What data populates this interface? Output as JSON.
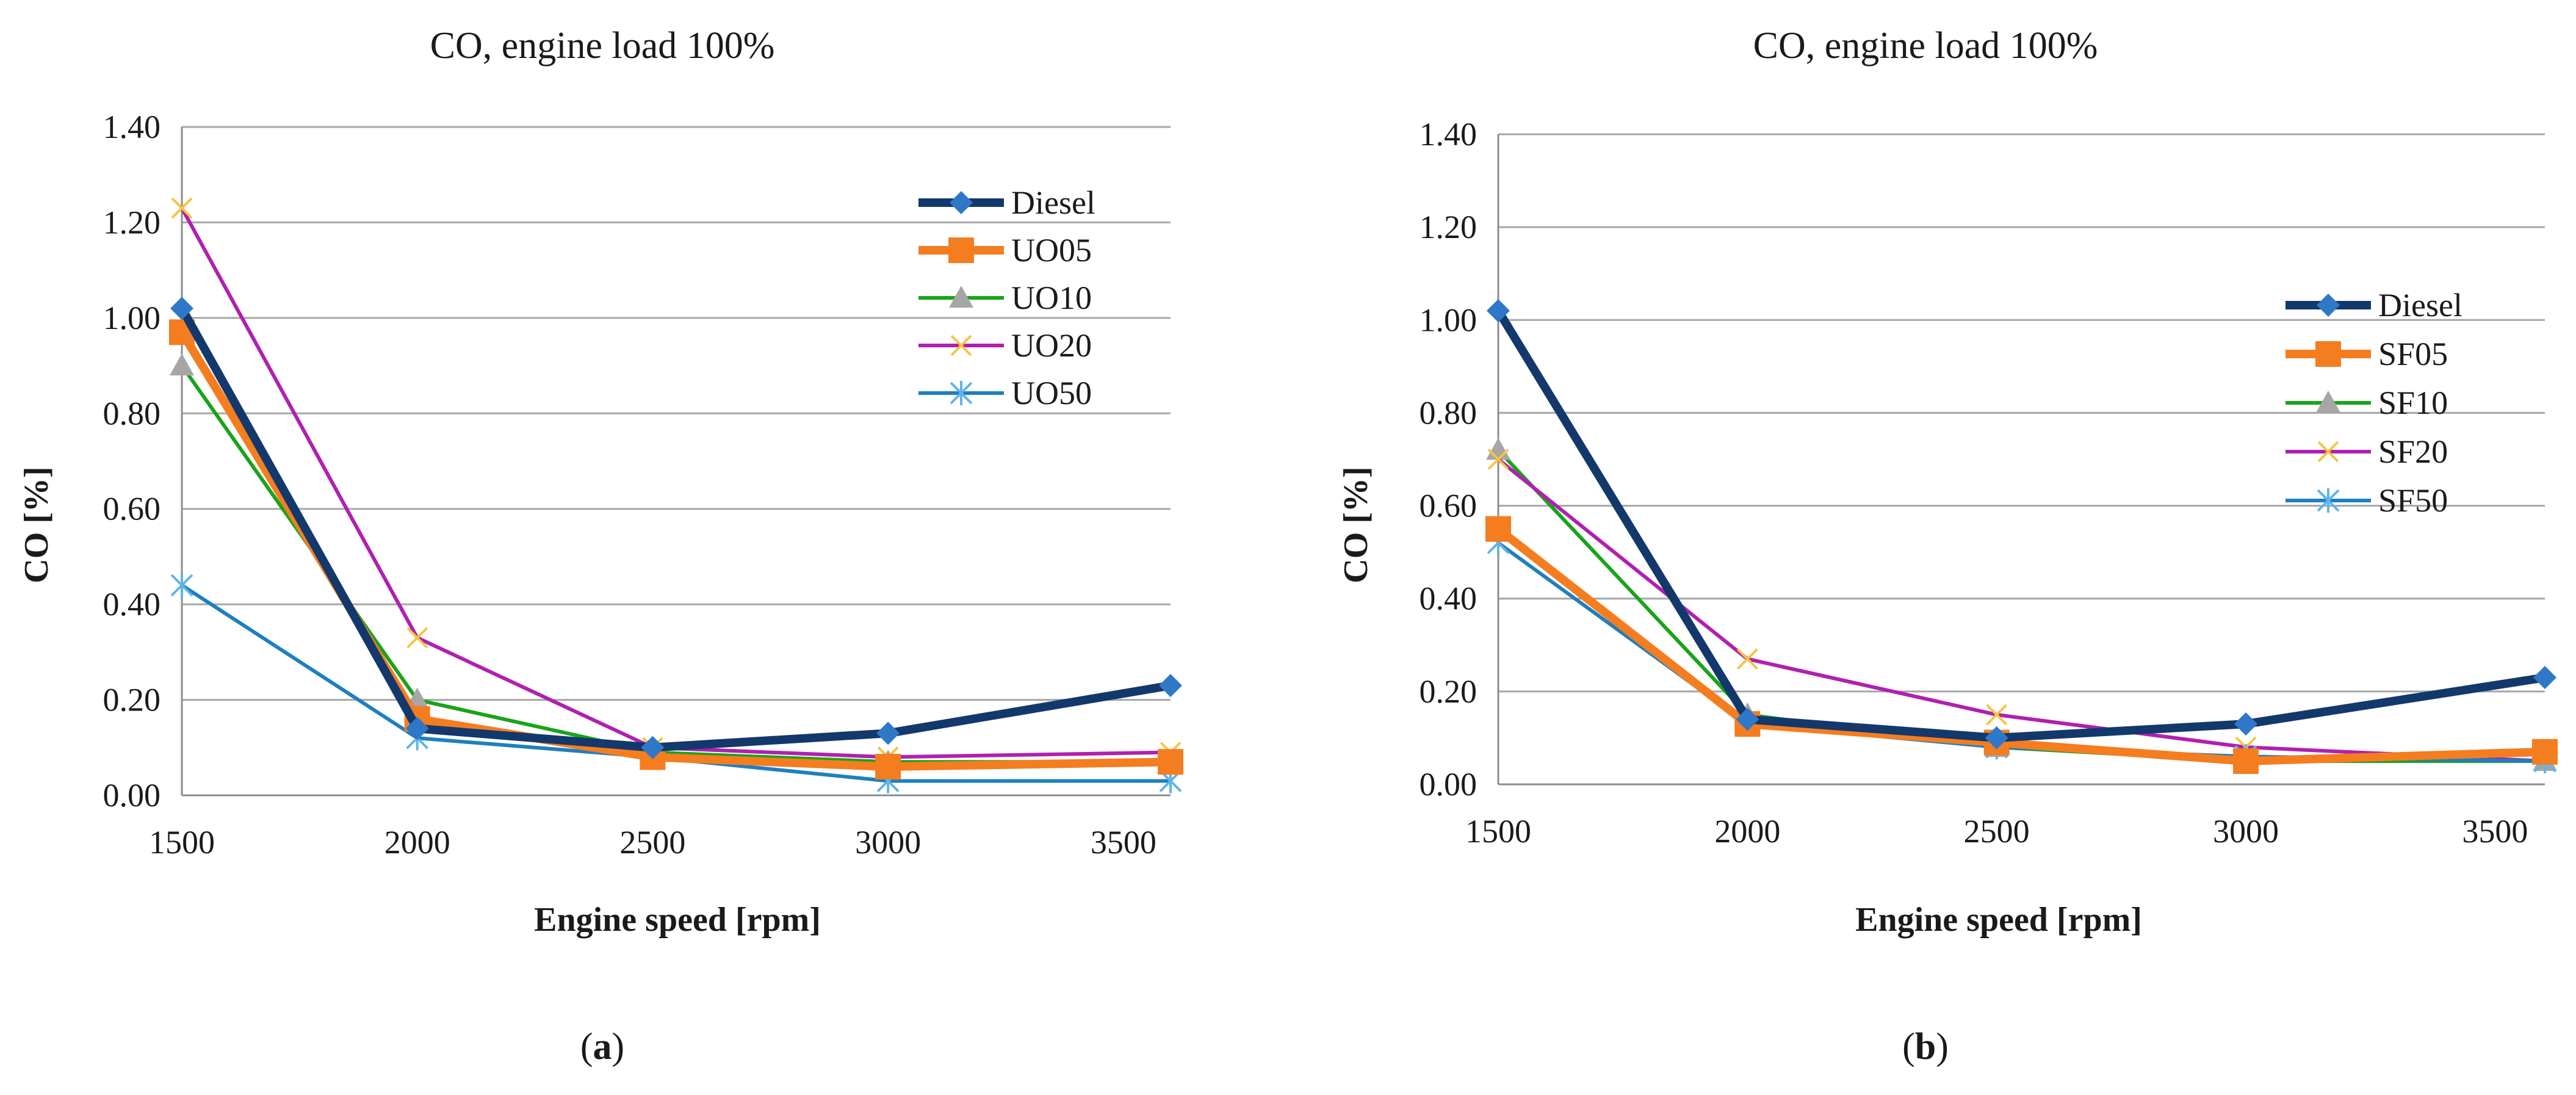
{
  "colors": {
    "Diesel": "#13386b",
    "UO05": "#f47d20",
    "UO10": "#1aa31a",
    "UO20": "#b020b0",
    "UO50": "#1e7fc0",
    "SF05": "#f47d20",
    "SF10": "#1aa31a",
    "SF20": "#b020b0",
    "SF50": "#1e7fc0",
    "grid": "#a6a6a6",
    "axis": "#8c8c8c",
    "diamond": "#2f78c8",
    "triangle": "#a6a6a6",
    "cross": "#f5c542",
    "star": "#5fb4ea"
  },
  "chart_data": [
    {
      "type": "line",
      "panel_label": "a",
      "title": "CO, engine load 100%",
      "xlabel": "Engine speed [rpm]",
      "ylabel": "CO [%]",
      "x": [
        1500,
        2000,
        2500,
        3000,
        3600
      ],
      "x_ticks": [
        "1500",
        "2000",
        "2500",
        "3000",
        "3500"
      ],
      "y_ticks": [
        "0.00",
        "0.20",
        "0.40",
        "0.60",
        "0.80",
        "1.00",
        "1.20",
        "1.40"
      ],
      "xlim": [
        1500,
        3600
      ],
      "ylim": [
        0,
        1.4
      ],
      "grid": true,
      "legend_position": "top-right",
      "series": [
        {
          "name": "Diesel",
          "values": [
            1.02,
            0.14,
            0.1,
            0.13,
            0.23
          ],
          "marker": "diamond",
          "thick": true
        },
        {
          "name": "UO05",
          "values": [
            0.97,
            0.16,
            0.08,
            0.06,
            0.07
          ],
          "marker": "square",
          "thick": true
        },
        {
          "name": "UO10",
          "values": [
            0.9,
            0.2,
            0.09,
            0.07,
            0.07
          ],
          "marker": "triangle",
          "thick": false
        },
        {
          "name": "UO20",
          "values": [
            1.23,
            0.33,
            0.1,
            0.08,
            0.09
          ],
          "marker": "cross",
          "thick": false
        },
        {
          "name": "UO50",
          "values": [
            0.44,
            0.12,
            0.08,
            0.03,
            0.03
          ],
          "marker": "star",
          "thick": false
        }
      ]
    },
    {
      "type": "line",
      "panel_label": "b",
      "title": "CO, engine load 100%",
      "xlabel": "Engine speed [rpm]",
      "ylabel": "CO [%]",
      "x": [
        1500,
        2000,
        2500,
        3000,
        3600
      ],
      "x_ticks": [
        "1500",
        "2000",
        "2500",
        "3000",
        "3500"
      ],
      "y_ticks": [
        "0.00",
        "0.20",
        "0.40",
        "0.60",
        "0.80",
        "1.00",
        "1.20",
        "1.40"
      ],
      "xlim": [
        1500,
        3600
      ],
      "ylim": [
        0,
        1.4
      ],
      "grid": true,
      "legend_position": "right",
      "series": [
        {
          "name": "Diesel",
          "values": [
            1.02,
            0.14,
            0.1,
            0.13,
            0.23
          ],
          "marker": "diamond",
          "thick": true
        },
        {
          "name": "SF05",
          "values": [
            0.55,
            0.13,
            0.09,
            0.05,
            0.07
          ],
          "marker": "square",
          "thick": true
        },
        {
          "name": "SF10",
          "values": [
            0.72,
            0.15,
            0.08,
            0.05,
            0.05
          ],
          "marker": "triangle",
          "thick": false
        },
        {
          "name": "SF20",
          "values": [
            0.7,
            0.27,
            0.15,
            0.08,
            0.05
          ],
          "marker": "cross",
          "thick": false
        },
        {
          "name": "SF50",
          "values": [
            0.52,
            0.13,
            0.08,
            0.06,
            0.05
          ],
          "marker": "star",
          "thick": false
        }
      ]
    }
  ]
}
